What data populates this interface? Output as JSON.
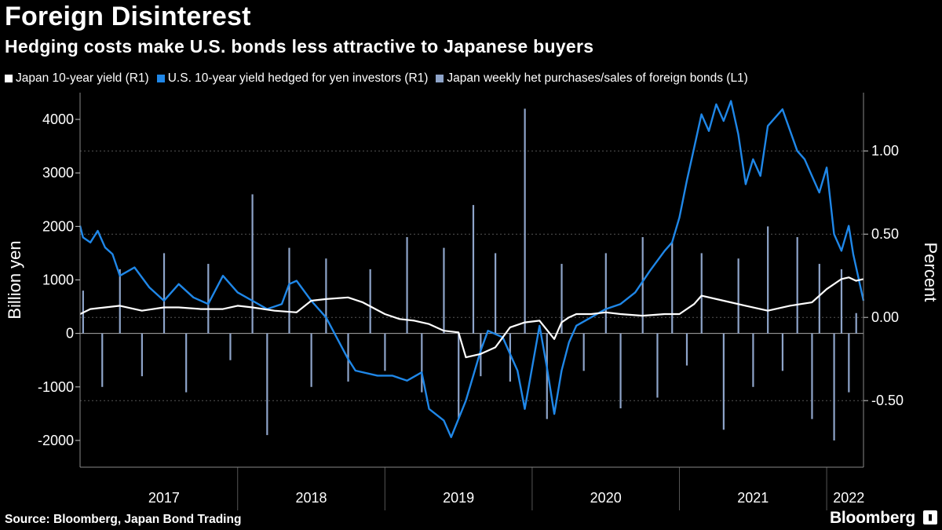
{
  "header": {
    "title": "Foreign Disinterest",
    "subtitle": "Hedging costs make U.S. bonds less attractive to Japanese buyers"
  },
  "footer": {
    "source": "Source: Bloomberg, Japan Bond Trading",
    "brand": "Bloomberg"
  },
  "colors": {
    "background": "#000000",
    "japan_yield": "#ffffff",
    "us_hedged": "#1f87e8",
    "purchases": "#8ea4c9",
    "grid": "#555555"
  },
  "chart_data": {
    "type": "line",
    "title": "Foreign Disinterest",
    "subtitle": "Hedging costs make U.S. bonds less attractive to Japanese buyers",
    "legend_position": "top",
    "x_range": [
      2016.93,
      2022.25
    ],
    "x_ticks": [
      "2017",
      "2018",
      "2019",
      "2020",
      "2021",
      "2022"
    ],
    "x_tick_centers": [
      2017.5,
      2018.5,
      2019.5,
      2020.5,
      2021.5,
      2022.15
    ],
    "y_left": {
      "label": "Billion yen",
      "range": [
        -2500,
        4500
      ],
      "ticks": [
        -2000,
        -1000,
        0,
        1000,
        2000,
        3000,
        4000
      ],
      "tick_labels": [
        "-2000",
        "-1000",
        "0",
        "1000",
        "2000",
        "3000",
        "4000"
      ]
    },
    "y_right": {
      "label": "Percent",
      "range": [
        -0.9,
        1.35
      ],
      "ticks": [
        -0.5,
        0.0,
        0.5,
        1.0
      ],
      "tick_labels": [
        "-0.50",
        "0.00",
        "0.50",
        "1.00"
      ]
    },
    "grid": true,
    "series": [
      {
        "name": "Japan 10-year yield (R1)",
        "kind": "line",
        "axis": "right",
        "color": "#ffffff",
        "x": [
          2016.93,
          2017.0,
          2017.1,
          2017.2,
          2017.35,
          2017.5,
          2017.6,
          2017.75,
          2017.9,
          2018.0,
          2018.1,
          2018.25,
          2018.4,
          2018.5,
          2018.6,
          2018.75,
          2018.85,
          2019.0,
          2019.1,
          2019.2,
          2019.3,
          2019.4,
          2019.5,
          2019.55,
          2019.65,
          2019.75,
          2019.85,
          2019.95,
          2020.05,
          2020.15,
          2020.2,
          2020.25,
          2020.3,
          2020.4,
          2020.5,
          2020.6,
          2020.75,
          2020.9,
          2021.0,
          2021.1,
          2021.15,
          2021.3,
          2021.45,
          2021.6,
          2021.75,
          2021.9,
          2022.0,
          2022.1,
          2022.15,
          2022.2,
          2022.25
        ],
        "values": [
          0.02,
          0.05,
          0.06,
          0.07,
          0.04,
          0.06,
          0.06,
          0.05,
          0.05,
          0.07,
          0.06,
          0.04,
          0.03,
          0.1,
          0.11,
          0.12,
          0.09,
          0.02,
          -0.01,
          -0.02,
          -0.04,
          -0.08,
          -0.09,
          -0.24,
          -0.22,
          -0.18,
          -0.06,
          -0.03,
          -0.02,
          -0.13,
          -0.03,
          0.0,
          0.02,
          0.02,
          0.03,
          0.02,
          0.01,
          0.02,
          0.02,
          0.08,
          0.13,
          0.1,
          0.07,
          0.04,
          0.07,
          0.09,
          0.17,
          0.23,
          0.24,
          0.22,
          0.23
        ]
      },
      {
        "name": "U.S. 10-year yield hedged for yen investors (R1)",
        "kind": "line",
        "axis": "right",
        "color": "#1f87e8",
        "x": [
          2016.93,
          2016.95,
          2017.0,
          2017.05,
          2017.1,
          2017.15,
          2017.2,
          2017.3,
          2017.4,
          2017.5,
          2017.6,
          2017.7,
          2017.8,
          2017.9,
          2018.0,
          2018.1,
          2018.2,
          2018.3,
          2018.35,
          2018.4,
          2018.5,
          2018.6,
          2018.75,
          2018.8,
          2018.95,
          2019.05,
          2019.15,
          2019.25,
          2019.3,
          2019.4,
          2019.45,
          2019.55,
          2019.65,
          2019.7,
          2019.8,
          2019.9,
          2019.95,
          2020.05,
          2020.1,
          2020.15,
          2020.2,
          2020.25,
          2020.3,
          2020.4,
          2020.5,
          2020.6,
          2020.7,
          2020.8,
          2020.9,
          2020.95,
          2021.0,
          2021.05,
          2021.1,
          2021.15,
          2021.2,
          2021.25,
          2021.3,
          2021.35,
          2021.4,
          2021.45,
          2021.5,
          2021.55,
          2021.6,
          2021.7,
          2021.8,
          2021.85,
          2021.9,
          2021.95,
          2022.0,
          2022.05,
          2022.1,
          2022.15,
          2022.18,
          2022.22,
          2022.25
        ],
        "values": [
          0.55,
          0.48,
          0.45,
          0.52,
          0.42,
          0.38,
          0.25,
          0.3,
          0.18,
          0.1,
          0.2,
          0.12,
          0.08,
          0.25,
          0.15,
          0.1,
          0.05,
          0.08,
          0.2,
          0.22,
          0.1,
          0.0,
          -0.25,
          -0.32,
          -0.35,
          -0.35,
          -0.38,
          -0.33,
          -0.55,
          -0.62,
          -0.72,
          -0.5,
          -0.2,
          -0.08,
          -0.12,
          -0.32,
          -0.55,
          -0.05,
          -0.3,
          -0.58,
          -0.32,
          -0.15,
          -0.05,
          0.0,
          0.05,
          0.08,
          0.15,
          0.28,
          0.4,
          0.45,
          0.6,
          0.82,
          1.02,
          1.22,
          1.12,
          1.28,
          1.18,
          1.3,
          1.1,
          0.8,
          0.95,
          0.85,
          1.15,
          1.25,
          1.0,
          0.95,
          0.85,
          0.75,
          0.9,
          0.5,
          0.4,
          0.55,
          0.38,
          0.22,
          0.1
        ]
      },
      {
        "name": "Japan weekly het purchases/sales of foreign bonds (L1)",
        "kind": "bar",
        "axis": "left",
        "color": "#8ea4c9",
        "x": [
          2016.95,
          2017.08,
          2017.2,
          2017.35,
          2017.5,
          2017.65,
          2017.8,
          2017.95,
          2018.1,
          2018.2,
          2018.35,
          2018.5,
          2018.6,
          2018.75,
          2018.9,
          2019.0,
          2019.15,
          2019.25,
          2019.4,
          2019.5,
          2019.6,
          2019.65,
          2019.75,
          2019.85,
          2019.95,
          2020.1,
          2020.2,
          2020.35,
          2020.5,
          2020.6,
          2020.75,
          2020.85,
          2020.95,
          2021.05,
          2021.15,
          2021.3,
          2021.4,
          2021.5,
          2021.6,
          2021.7,
          2021.8,
          2021.9,
          2021.95,
          2022.05,
          2022.1,
          2022.15,
          2022.2
        ],
        "values": [
          800,
          -1000,
          1200,
          -800,
          1500,
          -1100,
          1300,
          -500,
          2600,
          -1900,
          1600,
          -1000,
          1400,
          -900,
          1200,
          -700,
          1800,
          -1100,
          1600,
          -1600,
          2400,
          -800,
          1500,
          -900,
          4200,
          -1600,
          1300,
          -700,
          1500,
          -1400,
          1800,
          -1200,
          1700,
          -600,
          1500,
          -1800,
          1400,
          -1000,
          2000,
          -700,
          1800,
          -1600,
          1300,
          -2000,
          1200,
          -1100,
          380
        ]
      }
    ]
  }
}
